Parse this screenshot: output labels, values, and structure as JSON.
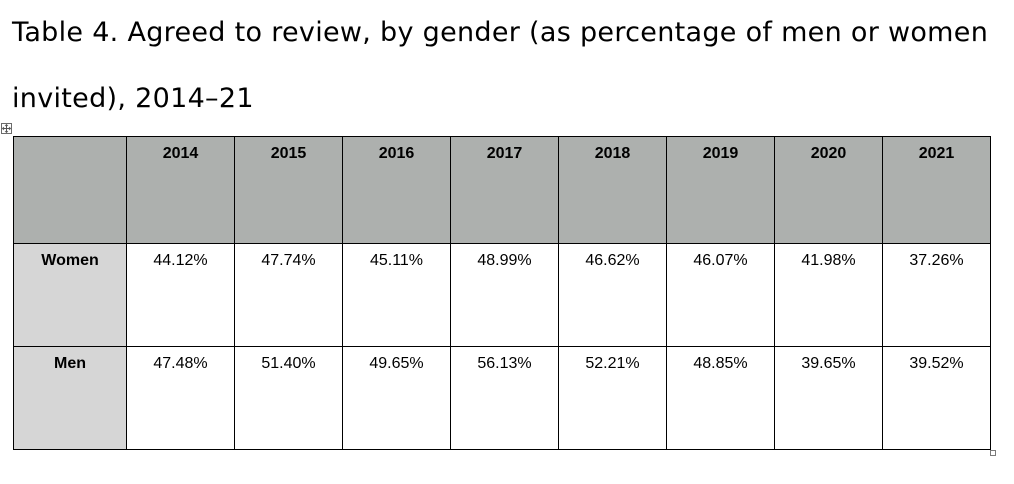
{
  "caption": {
    "line1": "Table 4. Agreed to review, by gender (as percentage of men or women",
    "line2": "invited), 2014–21"
  },
  "table": {
    "corner": "",
    "years": [
      "2014",
      "2015",
      "2016",
      "2017",
      "2018",
      "2019",
      "2020",
      "2021"
    ],
    "rows": [
      {
        "label": "Women",
        "values": [
          "44.12%",
          "47.74%",
          "45.11%",
          "48.99%",
          "46.62%",
          "46.07%",
          "41.98%",
          "37.26%"
        ]
      },
      {
        "label": "Men",
        "values": [
          "47.48%",
          "51.40%",
          "49.65%",
          "56.13%",
          "52.21%",
          "48.85%",
          "39.65%",
          "39.52%"
        ]
      }
    ]
  },
  "colors": {
    "header_bg": "#adb0ae",
    "row_label_bg": "#d6d6d6",
    "border": "#000000"
  },
  "icons": {
    "move_handle": "table-move-handle-icon",
    "resize_handle": "table-resize-handle-icon"
  }
}
